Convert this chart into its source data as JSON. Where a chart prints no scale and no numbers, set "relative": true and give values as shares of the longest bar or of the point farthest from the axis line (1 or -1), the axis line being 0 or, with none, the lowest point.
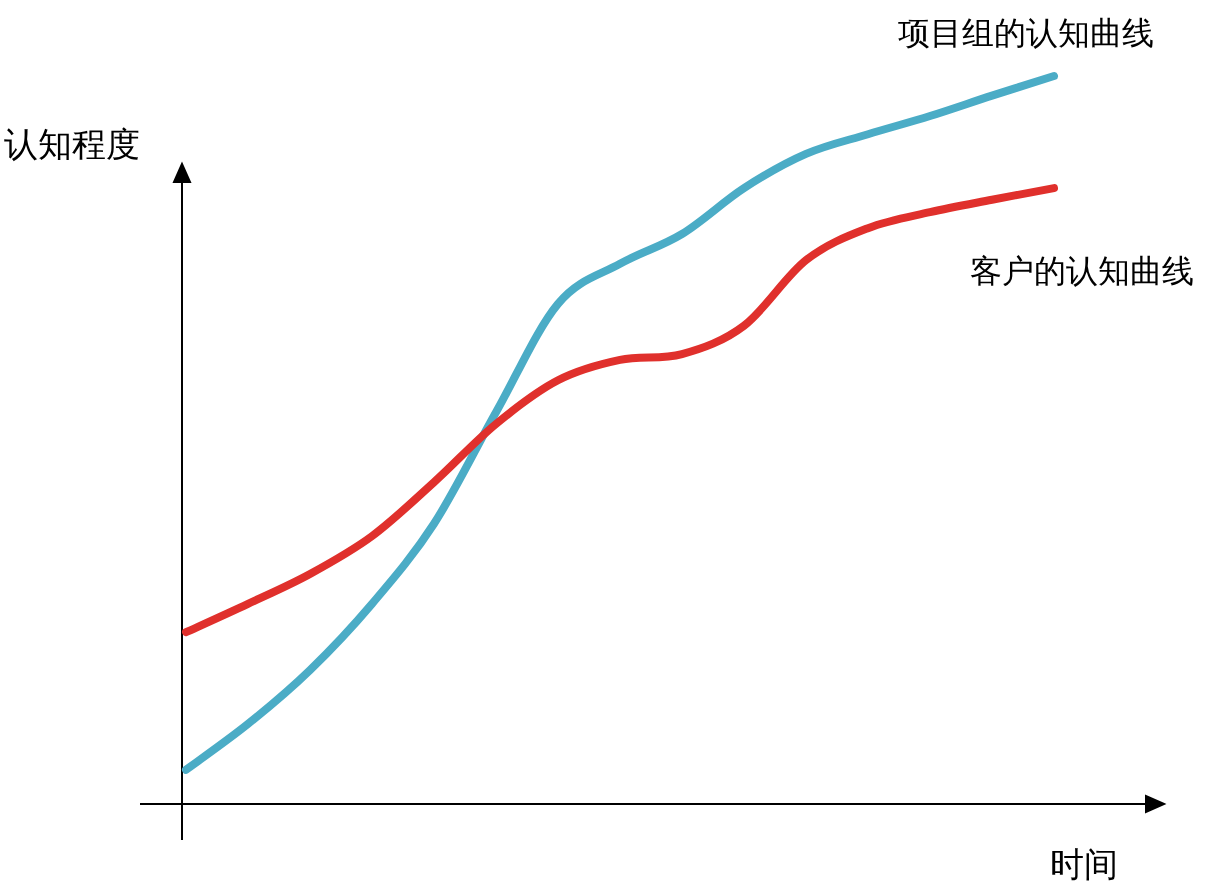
{
  "chart_data": {
    "type": "line",
    "relative": true,
    "ylabel": "认知程度",
    "xlabel": "时间",
    "line_style": "solid",
    "categories": [
      null,
      null,
      null,
      null,
      null,
      null,
      null,
      null,
      null,
      null,
      null,
      null,
      null,
      null,
      null
    ],
    "series": [
      {
        "name": "项目组的认知曲线",
        "color": "#4bacc6",
        "values": [
          0.047,
          0.11,
          0.184,
          0.275,
          0.385,
          0.538,
          0.687,
          0.742,
          0.783,
          0.846,
          0.893,
          0.92,
          0.945,
          0.973,
          1
        ]
      },
      {
        "name": "客户的认知曲线",
        "color": "#e0302c",
        "values": [
          0.236,
          0.275,
          0.316,
          0.368,
          0.442,
          0.522,
          0.582,
          0.61,
          0.618,
          0.657,
          0.747,
          0.791,
          0.813,
          0.83,
          0.846
        ]
      }
    ]
  }
}
